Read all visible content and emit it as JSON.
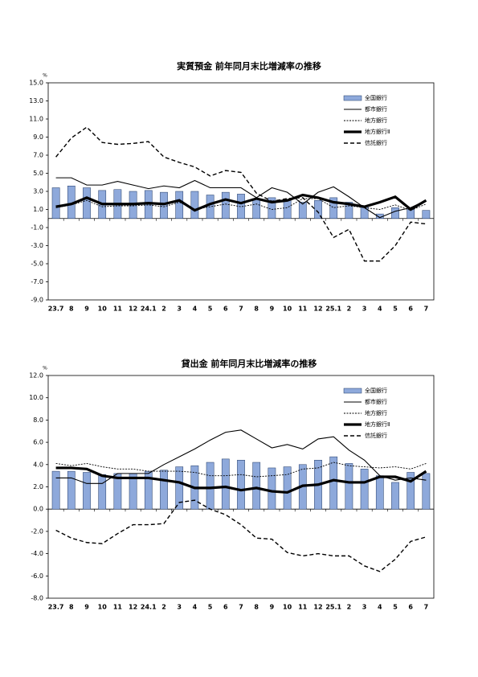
{
  "chart_data": [
    {
      "type": "combo",
      "title": "実質預金 前年同月末比増減率の推移",
      "y_unit": "%",
      "categories": [
        "23.7",
        "8",
        "9",
        "10",
        "11",
        "12",
        "24.1",
        "2",
        "3",
        "4",
        "5",
        "6",
        "7",
        "8",
        "9",
        "10",
        "11",
        "12",
        "25.1",
        "2",
        "3",
        "4",
        "5",
        "6",
        "7"
      ],
      "ylim": [
        -9,
        15
      ],
      "yticks": [
        {
          "value": 15,
          "label": "15.0"
        },
        {
          "value": 13,
          "label": "13.0"
        },
        {
          "value": 11,
          "label": "11.0"
        },
        {
          "value": 9,
          "label": "9.0"
        },
        {
          "value": 7,
          "label": "7.0"
        },
        {
          "value": 5,
          "label": "5.0"
        },
        {
          "value": 3,
          "label": "3.0"
        },
        {
          "value": 1,
          "label": "1.0"
        },
        {
          "value": -1,
          "label": "-1.0"
        },
        {
          "value": -3,
          "label": "-3.0"
        },
        {
          "value": -5,
          "label": "-5.0"
        },
        {
          "value": -7,
          "label": "-7.0"
        },
        {
          "value": -9,
          "label": "-9.0"
        }
      ],
      "grid": false,
      "series": [
        {
          "name": "全国銀行",
          "type": "bar",
          "color": "#8ea9db",
          "values": [
            3.4,
            3.6,
            3.4,
            3.1,
            3.2,
            3.0,
            3.1,
            2.9,
            3.0,
            3.0,
            2.6,
            2.9,
            2.7,
            2.2,
            2.3,
            2.1,
            1.8,
            2.0,
            2.3,
            1.8,
            1.3,
            0.5,
            1.2,
            1.0,
            0.9
          ]
        },
        {
          "name": "都市銀行",
          "type": "line",
          "style": "solid",
          "color": "#000000",
          "values": [
            4.5,
            4.5,
            3.7,
            3.7,
            4.1,
            3.7,
            3.3,
            3.6,
            3.4,
            4.2,
            3.4,
            3.4,
            3.4,
            2.3,
            3.4,
            2.9,
            1.6,
            2.9,
            3.5,
            2.4,
            1.2,
            0.1,
            0.8,
            1.2,
            2.0
          ]
        },
        {
          "name": "地方銀行",
          "type": "line",
          "style": "dotted",
          "color": "#000000",
          "values": [
            1.2,
            1.5,
            2.0,
            1.3,
            1.4,
            1.4,
            1.5,
            1.3,
            1.8,
            1.0,
            1.3,
            1.6,
            1.3,
            1.6,
            1.0,
            1.2,
            2.2,
            2.2,
            1.2,
            1.4,
            1.2,
            1.0,
            1.5,
            0.9,
            1.6
          ]
        },
        {
          "name": "地方銀行Ⅱ",
          "type": "line",
          "style": "double",
          "color": "#000000",
          "values": [
            1.3,
            1.6,
            2.3,
            1.6,
            1.6,
            1.6,
            1.7,
            1.6,
            2.0,
            0.9,
            1.6,
            2.1,
            1.7,
            2.2,
            1.8,
            2.0,
            2.6,
            2.3,
            1.8,
            1.6,
            1.3,
            1.8,
            2.4,
            1.0,
            2.0
          ]
        },
        {
          "name": "信託銀行",
          "type": "line",
          "style": "dashed",
          "color": "#000000",
          "values": [
            6.8,
            8.9,
            10.1,
            8.4,
            8.2,
            8.3,
            8.5,
            6.8,
            6.2,
            5.7,
            4.7,
            5.3,
            5.1,
            2.8,
            1.9,
            2.2,
            2.3,
            0.7,
            -2.1,
            -1.2,
            -4.7,
            -4.7,
            -3.0,
            -0.4,
            -0.6
          ]
        }
      ]
    },
    {
      "type": "combo",
      "title": "貸出金 前年同月末比増減率の推移",
      "y_unit": "%",
      "categories": [
        "23.7",
        "8",
        "9",
        "10",
        "11",
        "12",
        "24.1",
        "2",
        "3",
        "4",
        "5",
        "6",
        "7",
        "8",
        "9",
        "10",
        "11",
        "12",
        "25.1",
        "2",
        "3",
        "4",
        "5",
        "6",
        "7"
      ],
      "ylim": [
        -8,
        12
      ],
      "yticks": [
        {
          "value": 12,
          "label": "12.0"
        },
        {
          "value": 10,
          "label": "10.0"
        },
        {
          "value": 8,
          "label": "8.0"
        },
        {
          "value": 6,
          "label": "6.0"
        },
        {
          "value": 4,
          "label": "4.0"
        },
        {
          "value": 2,
          "label": "2.0"
        },
        {
          "value": 0,
          "label": "0.0"
        },
        {
          "value": -2,
          "label": "-2.0"
        },
        {
          "value": -4,
          "label": "-4.0"
        },
        {
          "value": -6,
          "label": "-6.0"
        },
        {
          "value": -8,
          "label": "-8.0"
        }
      ],
      "grid": false,
      "series": [
        {
          "name": "全国銀行",
          "type": "bar",
          "color": "#8ea9db",
          "values": [
            3.4,
            3.4,
            3.3,
            3.1,
            3.2,
            3.2,
            3.4,
            3.5,
            3.8,
            3.9,
            4.2,
            4.5,
            4.4,
            4.2,
            3.7,
            3.8,
            4.0,
            4.4,
            4.7,
            4.1,
            3.6,
            3.0,
            2.4,
            3.3,
            3.2
          ]
        },
        {
          "name": "都市銀行",
          "type": "line",
          "style": "solid",
          "color": "#000000",
          "values": [
            2.8,
            2.8,
            2.3,
            2.3,
            3.2,
            3.2,
            3.2,
            4.0,
            4.7,
            5.4,
            6.2,
            6.9,
            7.1,
            6.3,
            5.5,
            5.8,
            5.4,
            6.3,
            6.5,
            5.3,
            4.4,
            3.0,
            2.6,
            2.8,
            2.6
          ]
        },
        {
          "name": "地方銀行",
          "type": "line",
          "style": "dotted",
          "color": "#000000",
          "values": [
            4.1,
            3.9,
            4.1,
            3.8,
            3.6,
            3.6,
            3.4,
            3.4,
            3.4,
            3.3,
            3.0,
            3.0,
            3.1,
            2.9,
            3.0,
            3.1,
            3.6,
            3.7,
            4.2,
            3.9,
            3.8,
            3.7,
            3.8,
            3.6,
            4.1
          ]
        },
        {
          "name": "地方銀行Ⅱ",
          "type": "line",
          "style": "double",
          "color": "#000000",
          "values": [
            3.7,
            3.7,
            3.6,
            3.0,
            2.8,
            2.8,
            2.8,
            2.6,
            2.4,
            1.9,
            1.9,
            2.0,
            1.7,
            1.9,
            1.6,
            1.5,
            2.1,
            2.2,
            2.6,
            2.4,
            2.4,
            2.9,
            2.9,
            2.5,
            3.4
          ]
        },
        {
          "name": "信託銀行",
          "type": "line",
          "style": "dashed",
          "color": "#000000",
          "values": [
            -1.9,
            -2.6,
            -3.0,
            -3.1,
            -2.2,
            -1.4,
            -1.4,
            -1.3,
            0.6,
            0.8,
            0.0,
            -0.5,
            -1.4,
            -2.6,
            -2.7,
            -3.9,
            -4.2,
            -4.0,
            -4.2,
            -4.2,
            -5.1,
            -5.6,
            -4.5,
            -2.9,
            -2.5
          ]
        }
      ]
    }
  ]
}
